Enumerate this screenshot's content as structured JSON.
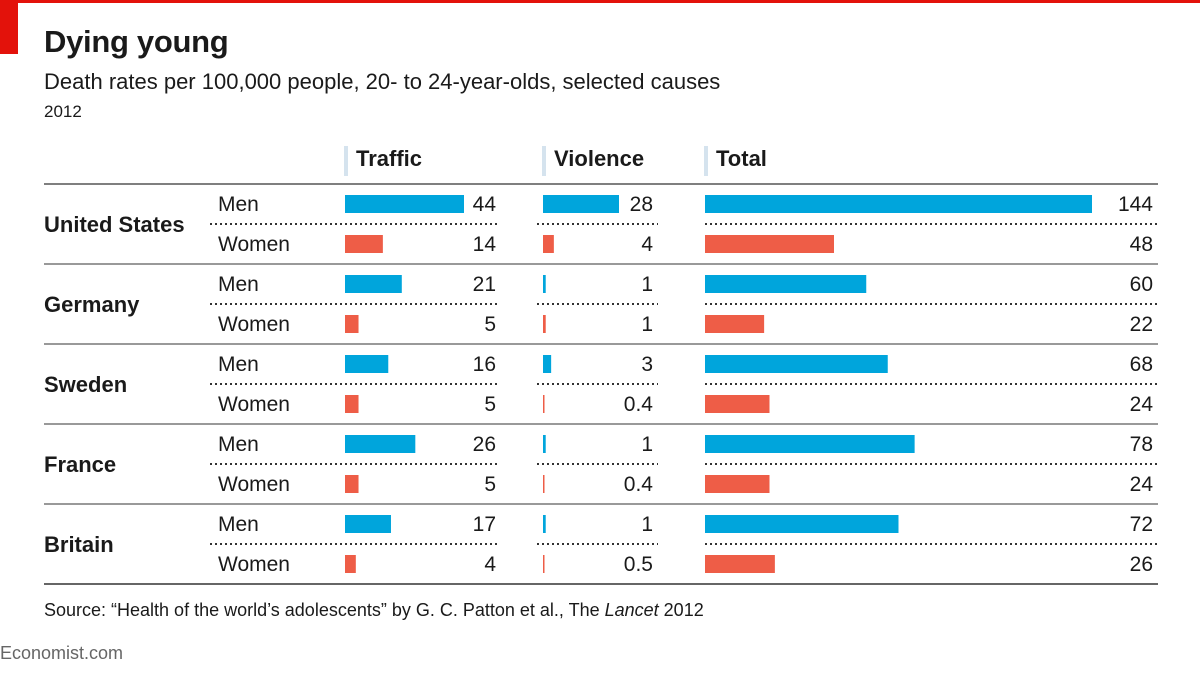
{
  "header": {
    "title": "Dying young",
    "subtitle": "Death rates per 100,000 people, 20- to 24-year-olds, selected causes",
    "year": "2012"
  },
  "colors": {
    "men": "#00a5dc",
    "women": "#ee5d47",
    "accent_red": "#e3120b",
    "column_marker": "#d5e3ee",
    "rule": "#333333",
    "dotted": "#333333"
  },
  "chart_data": {
    "type": "bar",
    "title": "Dying young",
    "subtitle": "Death rates per 100,000 people, 20- to 24-year-olds, selected causes",
    "columns": [
      "Traffic",
      "Violence",
      "Total"
    ],
    "column_max": {
      "Traffic": 44,
      "Violence": 28,
      "Total": 144
    },
    "countries": [
      {
        "name": "United States",
        "rows": [
          {
            "sex": "Men",
            "Traffic": 44,
            "Violence": 28,
            "Total": 144,
            "labels": [
              "44",
              "28",
              "144"
            ]
          },
          {
            "sex": "Women",
            "Traffic": 14,
            "Violence": 4,
            "Total": 48,
            "labels": [
              "14",
              "4",
              "48"
            ]
          }
        ]
      },
      {
        "name": "Germany",
        "rows": [
          {
            "sex": "Men",
            "Traffic": 21,
            "Violence": 1,
            "Total": 60,
            "labels": [
              "21",
              "1",
              "60"
            ]
          },
          {
            "sex": "Women",
            "Traffic": 5,
            "Violence": 1,
            "Total": 22,
            "labels": [
              "5",
              "1",
              "22"
            ]
          }
        ]
      },
      {
        "name": "Sweden",
        "rows": [
          {
            "sex": "Men",
            "Traffic": 16,
            "Violence": 3,
            "Total": 68,
            "labels": [
              "16",
              "3",
              "68"
            ]
          },
          {
            "sex": "Women",
            "Traffic": 5,
            "Violence": 0.4,
            "Total": 24,
            "labels": [
              "5",
              "0.4",
              "24"
            ]
          }
        ]
      },
      {
        "name": "France",
        "rows": [
          {
            "sex": "Men",
            "Traffic": 26,
            "Violence": 1,
            "Total": 78,
            "labels": [
              "26",
              "1",
              "78"
            ]
          },
          {
            "sex": "Women",
            "Traffic": 5,
            "Violence": 0.4,
            "Total": 24,
            "labels": [
              "5",
              "0.4",
              "24"
            ]
          }
        ]
      },
      {
        "name": "Britain",
        "rows": [
          {
            "sex": "Men",
            "Traffic": 17,
            "Violence": 1,
            "Total": 72,
            "labels": [
              "17",
              "1",
              "72"
            ]
          },
          {
            "sex": "Women",
            "Traffic": 4,
            "Violence": 0.5,
            "Total": 26,
            "labels": [
              "4",
              "0.5",
              "26"
            ]
          }
        ]
      }
    ]
  },
  "footer": {
    "source_prefix": "Source: “Health of the world’s adolescents” by G. C. Patton et al., The ",
    "source_journal": "Lancet",
    "source_suffix": " 2012",
    "brand": "Economist.com"
  }
}
